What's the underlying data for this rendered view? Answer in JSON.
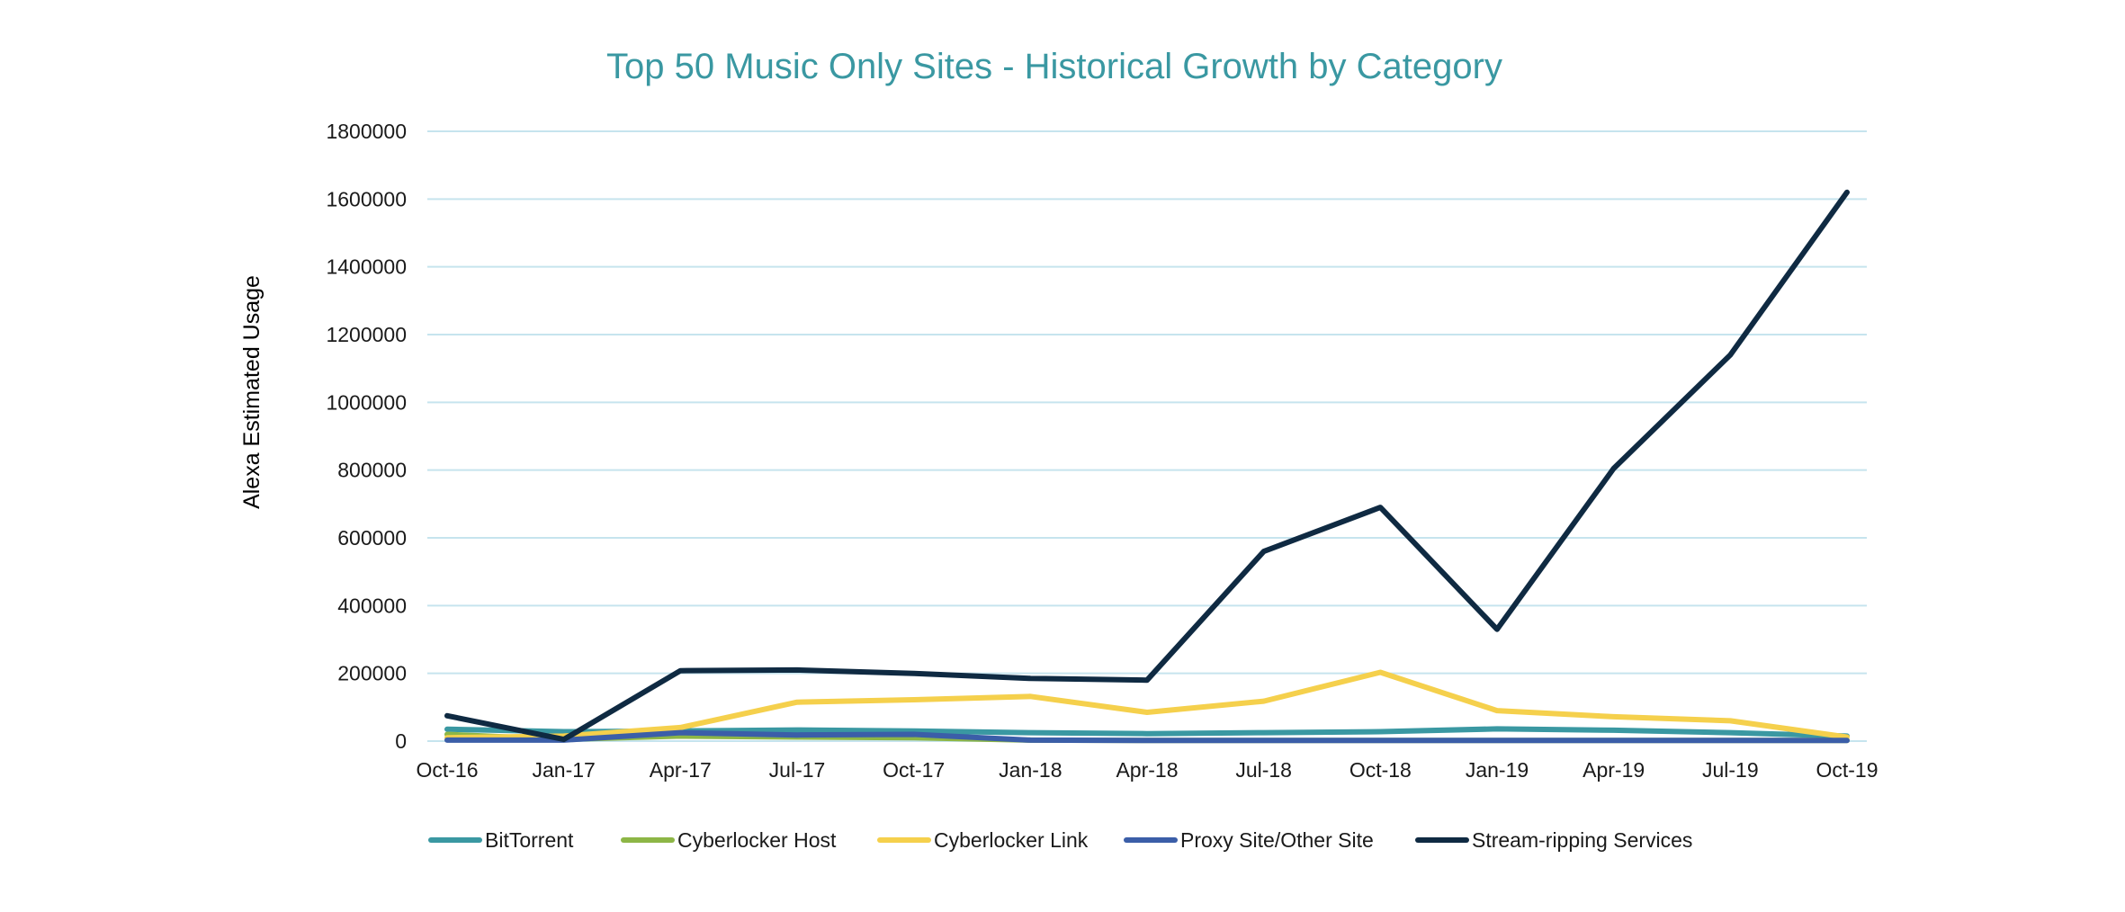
{
  "chart_data": {
    "type": "line",
    "title": "Top 50 Music Only Sites - Historical Growth by Category",
    "xlabel": "",
    "ylabel": "Alexa Estimated Usage",
    "categories": [
      "Oct-16",
      "Jan-17",
      "Apr-17",
      "Jul-17",
      "Oct-17",
      "Jan-18",
      "Apr-18",
      "Jul-18",
      "Oct-18",
      "Jan-19",
      "Apr-19",
      "Jul-19",
      "Oct-19"
    ],
    "yticks": [
      "0",
      "200000",
      "400000",
      "600000",
      "800000",
      "1000000",
      "1200000",
      "1400000",
      "1600000",
      "1800000"
    ],
    "ylim": [
      0,
      1800000
    ],
    "grid": true,
    "legend_position": "bottom",
    "series": [
      {
        "name": "BitTorrent",
        "color": "#3a98a2",
        "values": [
          35000,
          28000,
          30000,
          33000,
          30000,
          25000,
          22000,
          25000,
          28000,
          36000,
          32000,
          25000,
          15000
        ]
      },
      {
        "name": "Cyberlocker Host",
        "color": "#8db646",
        "values": [
          20000,
          5000,
          15000,
          12000,
          10000,
          3000,
          2000,
          2000,
          2000,
          2000,
          2000,
          2000,
          2000
        ]
      },
      {
        "name": "Cyberlocker Link",
        "color": "#f5d04c",
        "values": [
          10000,
          15000,
          40000,
          115000,
          122000,
          132000,
          85000,
          118000,
          203000,
          90000,
          72000,
          60000,
          12000
        ]
      },
      {
        "name": "Proxy Site/Other Site",
        "color": "#3b5ea8",
        "values": [
          3000,
          3000,
          25000,
          18000,
          20000,
          3000,
          2000,
          2000,
          2000,
          2000,
          2000,
          2000,
          2000
        ]
      },
      {
        "name": "Stream-ripping Services",
        "color": "#0f2a42",
        "values": [
          75000,
          5000,
          208000,
          210000,
          200000,
          185000,
          180000,
          560000,
          690000,
          330000,
          805000,
          1140000,
          1620000
        ]
      }
    ]
  }
}
